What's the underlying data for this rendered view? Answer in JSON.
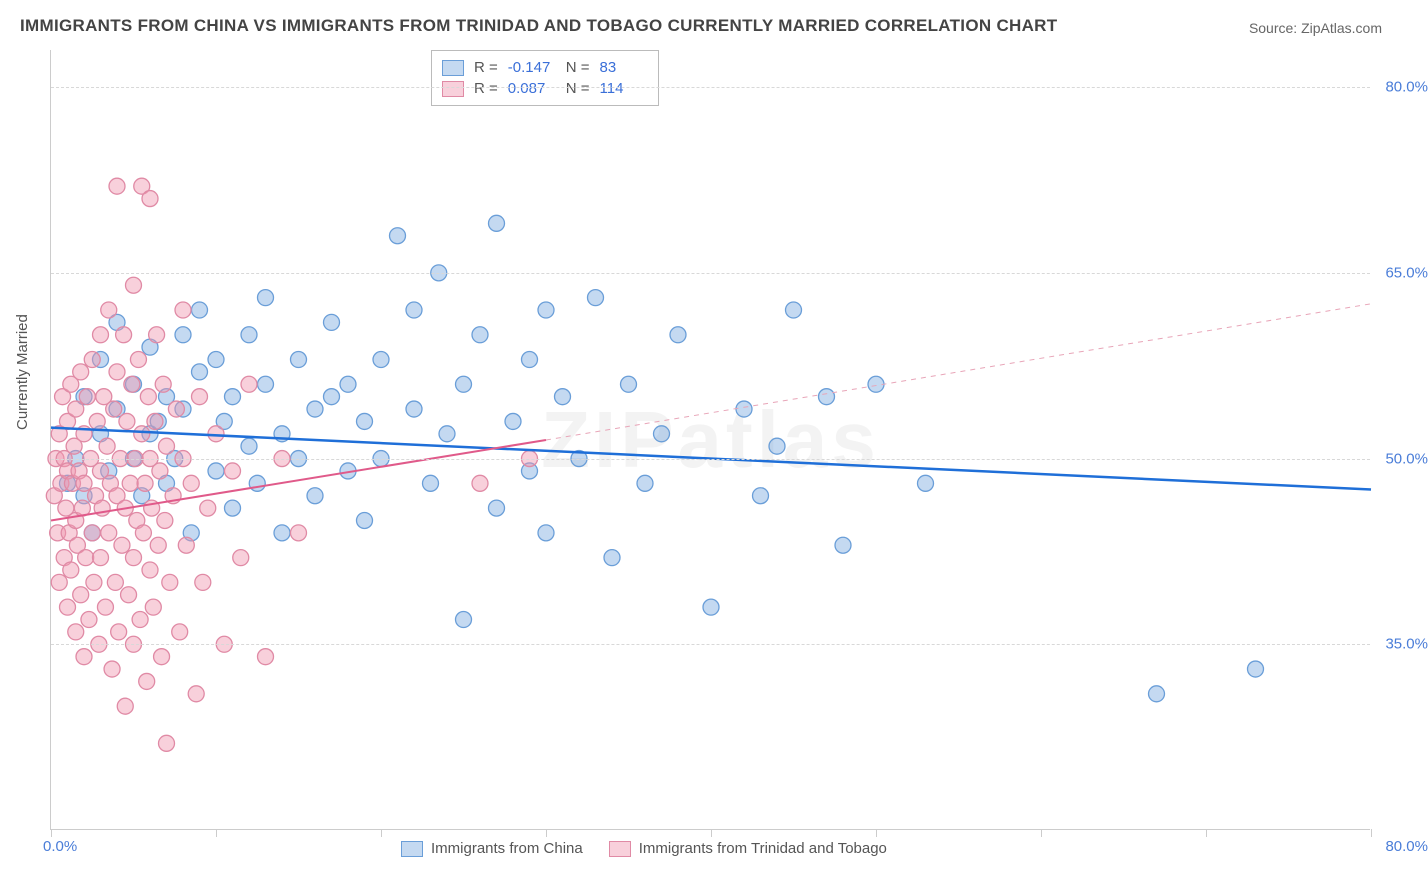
{
  "title": "IMMIGRANTS FROM CHINA VS IMMIGRANTS FROM TRINIDAD AND TOBAGO CURRENTLY MARRIED CORRELATION CHART",
  "source": "Source: ZipAtlas.com",
  "watermark": "ZIPatlas",
  "yaxis_title": "Currently Married",
  "chart": {
    "type": "scatter",
    "xlim": [
      0,
      80
    ],
    "ylim": [
      20,
      83
    ],
    "xtick_positions": [
      0,
      10,
      20,
      30,
      40,
      50,
      60,
      70,
      80
    ],
    "xtick_labels_shown": {
      "0": "0.0%",
      "80": "80.0%"
    },
    "y_gridlines": [
      35,
      50,
      65,
      80
    ],
    "y_gridline_labels": [
      "35.0%",
      "50.0%",
      "65.0%",
      "80.0%"
    ],
    "background_color": "#ffffff",
    "grid_color": "#d8d8d8",
    "axis_label_color": "#4a7dd8",
    "marker_radius": 8,
    "marker_stroke_width": 1.3,
    "series": [
      {
        "name": "Immigrants from China",
        "fill_color": "rgba(125,170,225,0.45)",
        "stroke_color": "#6a9ed8",
        "trend": {
          "x1": 0,
          "y1": 52.5,
          "x2": 80,
          "y2": 47.5,
          "stroke": "#1f6fd8",
          "width": 2.5,
          "dash": "none"
        },
        "trend_extrap": null,
        "R": "-0.147",
        "N": "83",
        "points": [
          [
            1,
            48
          ],
          [
            1.5,
            50
          ],
          [
            2,
            47
          ],
          [
            2,
            55
          ],
          [
            2.5,
            44
          ],
          [
            3,
            52
          ],
          [
            3,
            58
          ],
          [
            3.5,
            49
          ],
          [
            4,
            54
          ],
          [
            4,
            61
          ],
          [
            5,
            50
          ],
          [
            5,
            56
          ],
          [
            5.5,
            47
          ],
          [
            6,
            52
          ],
          [
            6,
            59
          ],
          [
            6.5,
            53
          ],
          [
            7,
            48
          ],
          [
            7,
            55
          ],
          [
            7.5,
            50
          ],
          [
            8,
            54
          ],
          [
            8,
            60
          ],
          [
            8.5,
            44
          ],
          [
            9,
            57
          ],
          [
            9,
            62
          ],
          [
            10,
            49
          ],
          [
            10,
            58
          ],
          [
            10.5,
            53
          ],
          [
            11,
            46
          ],
          [
            11,
            55
          ],
          [
            12,
            51
          ],
          [
            12,
            60
          ],
          [
            12.5,
            48
          ],
          [
            13,
            56
          ],
          [
            13,
            63
          ],
          [
            14,
            52
          ],
          [
            14,
            44
          ],
          [
            15,
            58
          ],
          [
            15,
            50
          ],
          [
            16,
            54
          ],
          [
            16,
            47
          ],
          [
            17,
            55
          ],
          [
            17,
            61
          ],
          [
            18,
            49
          ],
          [
            18,
            56
          ],
          [
            19,
            53
          ],
          [
            19,
            45
          ],
          [
            20,
            58
          ],
          [
            20,
            50
          ],
          [
            21,
            68
          ],
          [
            22,
            54
          ],
          [
            22,
            62
          ],
          [
            23,
            48
          ],
          [
            23.5,
            65
          ],
          [
            24,
            52
          ],
          [
            25,
            56
          ],
          [
            25,
            37
          ],
          [
            26,
            60
          ],
          [
            27,
            46
          ],
          [
            27,
            69
          ],
          [
            28,
            53
          ],
          [
            29,
            58
          ],
          [
            29,
            49
          ],
          [
            30,
            62
          ],
          [
            30,
            44
          ],
          [
            31,
            55
          ],
          [
            32,
            50
          ],
          [
            33,
            63
          ],
          [
            34,
            42
          ],
          [
            35,
            56
          ],
          [
            36,
            48
          ],
          [
            37,
            52
          ],
          [
            38,
            60
          ],
          [
            40,
            38
          ],
          [
            42,
            54
          ],
          [
            43,
            47
          ],
          [
            45,
            62
          ],
          [
            47,
            55
          ],
          [
            50,
            56
          ],
          [
            53,
            48
          ],
          [
            67,
            31
          ],
          [
            73,
            33
          ],
          [
            44,
            51
          ],
          [
            48,
            43
          ]
        ]
      },
      {
        "name": "Immigrants from Trinidad and Tobago",
        "fill_color": "rgba(240,150,175,0.45)",
        "stroke_color": "#e08aa5",
        "trend": {
          "x1": 0,
          "y1": 45,
          "x2": 30,
          "y2": 51.5,
          "stroke": "#e05a8a",
          "width": 2,
          "dash": "none"
        },
        "trend_extrap": {
          "x1": 30,
          "y1": 51.5,
          "x2": 80,
          "y2": 62.5,
          "stroke": "#e8a5b8",
          "width": 1,
          "dash": "5,5"
        },
        "R": "0.087",
        "N": "114",
        "points": [
          [
            0.2,
            47
          ],
          [
            0.3,
            50
          ],
          [
            0.4,
            44
          ],
          [
            0.5,
            52
          ],
          [
            0.5,
            40
          ],
          [
            0.6,
            48
          ],
          [
            0.7,
            55
          ],
          [
            0.8,
            42
          ],
          [
            0.8,
            50
          ],
          [
            0.9,
            46
          ],
          [
            1,
            53
          ],
          [
            1,
            38
          ],
          [
            1,
            49
          ],
          [
            1.1,
            44
          ],
          [
            1.2,
            56
          ],
          [
            1.2,
            41
          ],
          [
            1.3,
            48
          ],
          [
            1.4,
            51
          ],
          [
            1.5,
            36
          ],
          [
            1.5,
            45
          ],
          [
            1.5,
            54
          ],
          [
            1.6,
            43
          ],
          [
            1.7,
            49
          ],
          [
            1.8,
            39
          ],
          [
            1.8,
            57
          ],
          [
            1.9,
            46
          ],
          [
            2,
            52
          ],
          [
            2,
            34
          ],
          [
            2,
            48
          ],
          [
            2.1,
            42
          ],
          [
            2.2,
            55
          ],
          [
            2.3,
            37
          ],
          [
            2.4,
            50
          ],
          [
            2.5,
            44
          ],
          [
            2.5,
            58
          ],
          [
            2.6,
            40
          ],
          [
            2.7,
            47
          ],
          [
            2.8,
            53
          ],
          [
            2.9,
            35
          ],
          [
            3,
            49
          ],
          [
            3,
            60
          ],
          [
            3,
            42
          ],
          [
            3.1,
            46
          ],
          [
            3.2,
            55
          ],
          [
            3.3,
            38
          ],
          [
            3.4,
            51
          ],
          [
            3.5,
            44
          ],
          [
            3.5,
            62
          ],
          [
            3.6,
            48
          ],
          [
            3.7,
            33
          ],
          [
            3.8,
            54
          ],
          [
            3.9,
            40
          ],
          [
            4,
            47
          ],
          [
            4,
            57
          ],
          [
            4,
            72
          ],
          [
            4.1,
            36
          ],
          [
            4.2,
            50
          ],
          [
            4.3,
            43
          ],
          [
            4.4,
            60
          ],
          [
            4.5,
            46
          ],
          [
            4.5,
            30
          ],
          [
            4.6,
            53
          ],
          [
            4.7,
            39
          ],
          [
            4.8,
            48
          ],
          [
            4.9,
            56
          ],
          [
            5,
            42
          ],
          [
            5,
            64
          ],
          [
            5,
            35
          ],
          [
            5.1,
            50
          ],
          [
            5.2,
            45
          ],
          [
            5.3,
            58
          ],
          [
            5.4,
            37
          ],
          [
            5.5,
            52
          ],
          [
            5.5,
            72
          ],
          [
            5.6,
            44
          ],
          [
            5.7,
            48
          ],
          [
            5.8,
            32
          ],
          [
            5.9,
            55
          ],
          [
            6,
            41
          ],
          [
            6,
            50
          ],
          [
            6,
            71
          ],
          [
            6.1,
            46
          ],
          [
            6.2,
            38
          ],
          [
            6.3,
            53
          ],
          [
            6.4,
            60
          ],
          [
            6.5,
            43
          ],
          [
            6.6,
            49
          ],
          [
            6.7,
            34
          ],
          [
            6.8,
            56
          ],
          [
            6.9,
            45
          ],
          [
            7,
            51
          ],
          [
            7,
            27
          ],
          [
            7.2,
            40
          ],
          [
            7.4,
            47
          ],
          [
            7.6,
            54
          ],
          [
            7.8,
            36
          ],
          [
            8,
            50
          ],
          [
            8,
            62
          ],
          [
            8.2,
            43
          ],
          [
            8.5,
            48
          ],
          [
            8.8,
            31
          ],
          [
            9,
            55
          ],
          [
            9.2,
            40
          ],
          [
            9.5,
            46
          ],
          [
            10,
            52
          ],
          [
            10.5,
            35
          ],
          [
            11,
            49
          ],
          [
            11.5,
            42
          ],
          [
            12,
            56
          ],
          [
            13,
            34
          ],
          [
            14,
            50
          ],
          [
            15,
            44
          ],
          [
            26,
            48
          ],
          [
            29,
            50
          ]
        ]
      }
    ]
  },
  "legend": {
    "bottom_items": [
      "Immigrants from China",
      "Immigrants from Trinidad and Tobago"
    ]
  }
}
